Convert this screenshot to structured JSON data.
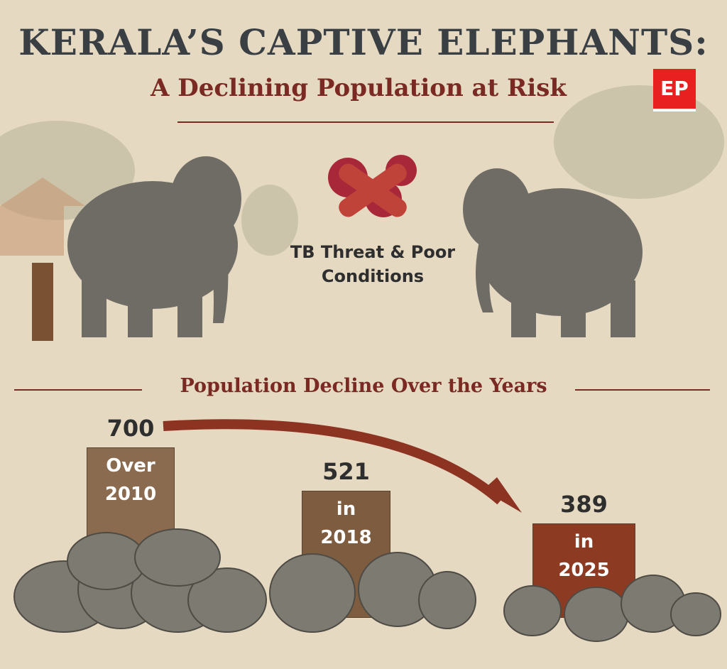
{
  "chart_data": {
    "type": "bar",
    "title": "KERALA’S CAPTIVE ELEPHANTS:",
    "subtitle": "A Declining Population at Risk",
    "logo": "EP",
    "annotation": "TB Threat & Poor Conditions",
    "section_title": "Population Decline Over the Years",
    "categories": [
      "Over 2010",
      "in 2018",
      "in 2025"
    ],
    "values": [
      700,
      521,
      389
    ],
    "colors": [
      "#8b6b50",
      "#7d5c3f",
      "#8c3b22"
    ]
  }
}
